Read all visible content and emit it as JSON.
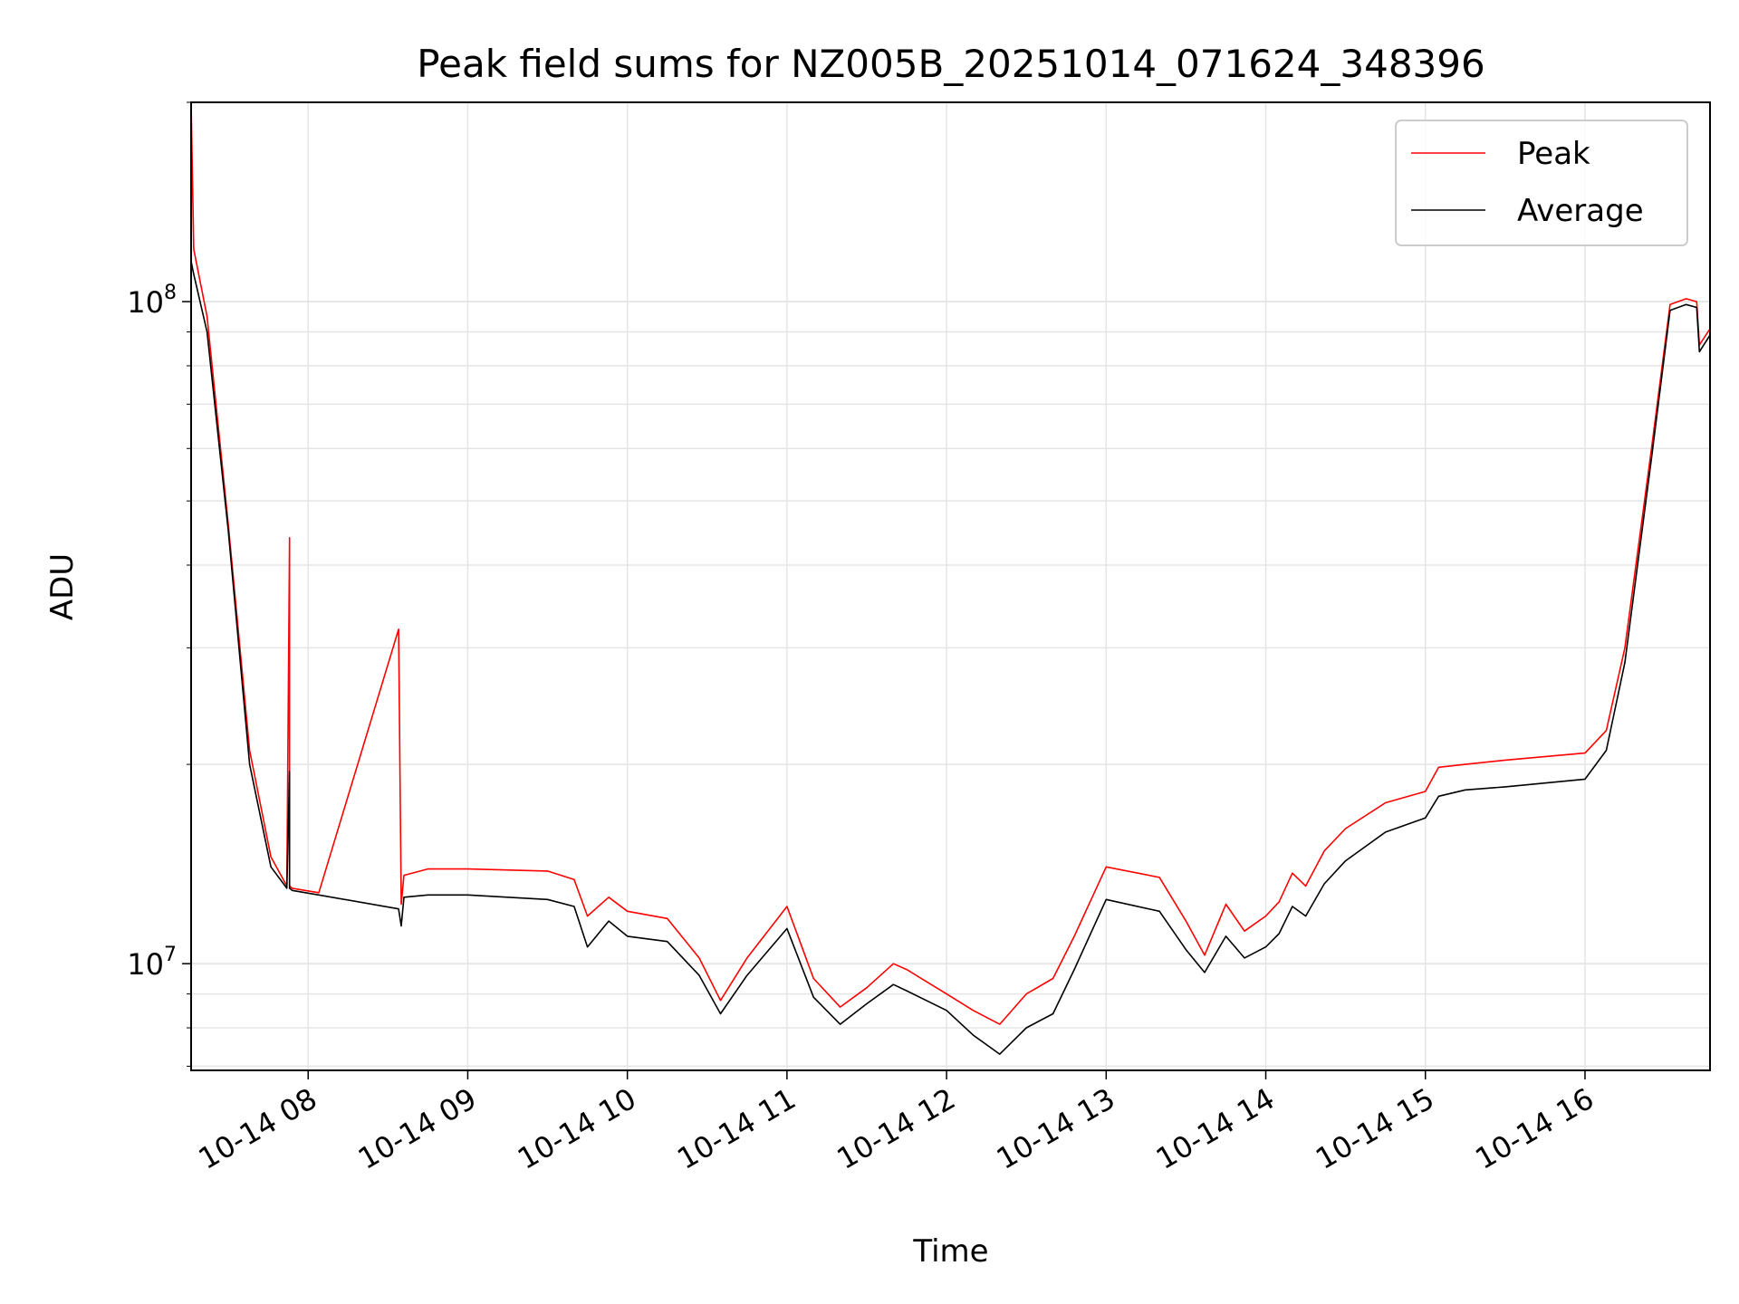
{
  "chart_data": {
    "type": "line",
    "title": "Peak field sums for NZ005B_20251014_071624_348396",
    "xlabel": "Time",
    "ylabel": "ADU",
    "yscale": "log",
    "ylim": [
      6900000,
      200000000
    ],
    "xlim": [
      "10-14 07:16",
      "10-14 16:47"
    ],
    "grid": true,
    "legend_position": "top-right",
    "x_tick_labels": [
      "10-14 08",
      "10-14 09",
      "10-14 10",
      "10-14 11",
      "10-14 12",
      "10-14 13",
      "10-14 14",
      "10-14 15",
      "10-14 16"
    ],
    "x_ticks": [
      "10-14 08:00",
      "10-14 09:00",
      "10-14 10:00",
      "10-14 11:00",
      "10-14 12:00",
      "10-14 13:00",
      "10-14 14:00",
      "10-14 15:00",
      "10-14 16:00"
    ],
    "y_major_ticks": [
      10000000,
      100000000
    ],
    "y_major_tick_labels": [
      {
        "base": "10",
        "exp": "7"
      },
      {
        "base": "10",
        "exp": "8"
      }
    ],
    "series": [
      {
        "name": "Peak",
        "color": "#ff0000",
        "x": [
          "10-14 07:16",
          "10-14 07:17",
          "10-14 07:22",
          "10-14 07:30",
          "10-14 07:38",
          "10-14 07:46",
          "10-14 07:52",
          "10-14 07:53",
          "10-14 07:53",
          "10-14 07:54",
          "10-14 08:04",
          "10-14 08:34",
          "10-14 08:35",
          "10-14 08:36",
          "10-14 08:45",
          "10-14 09:00",
          "10-14 09:30",
          "10-14 09:40",
          "10-14 09:45",
          "10-14 09:53",
          "10-14 10:00",
          "10-14 10:15",
          "10-14 10:27",
          "10-14 10:35",
          "10-14 10:45",
          "10-14 11:00",
          "10-14 11:10",
          "10-14 11:20",
          "10-14 11:30",
          "10-14 11:40",
          "10-14 11:45",
          "10-14 12:00",
          "10-14 12:10",
          "10-14 12:20",
          "10-14 12:30",
          "10-14 12:40",
          "10-14 12:48",
          "10-14 13:00",
          "10-14 13:20",
          "10-14 13:30",
          "10-14 13:37",
          "10-14 13:45",
          "10-14 13:52",
          "10-14 14:00",
          "10-14 14:05",
          "10-14 14:10",
          "10-14 14:15",
          "10-14 14:22",
          "10-14 14:30",
          "10-14 14:45",
          "10-14 15:00",
          "10-14 15:05",
          "10-14 15:15",
          "10-14 15:30",
          "10-14 16:00",
          "10-14 16:08",
          "10-14 16:15",
          "10-14 16:25",
          "10-14 16:32",
          "10-14 16:38",
          "10-14 16:42",
          "10-14 16:43",
          "10-14 16:47"
        ],
        "y": [
          200000000,
          120000000,
          95000000,
          46000000,
          21000000,
          14500000,
          13100000,
          44000000,
          13100000,
          13000000,
          12800000,
          32000000,
          12300000,
          13600000,
          13900000,
          13900000,
          13800000,
          13400000,
          11800000,
          12600000,
          12000000,
          11700000,
          10200000,
          8800000,
          10200000,
          12200000,
          9500000,
          8600000,
          9200000,
          10000000,
          9800000,
          9000000,
          8500000,
          8100000,
          9000000,
          9500000,
          11000000,
          14000000,
          13500000,
          11600000,
          10300000,
          12300000,
          11200000,
          11800000,
          12400000,
          13700000,
          13100000,
          14800000,
          16000000,
          17500000,
          18200000,
          19800000,
          20000000,
          20300000,
          20800000,
          22500000,
          30000000,
          60000000,
          99000000,
          101000000,
          100000000,
          86000000,
          91000000
        ]
      },
      {
        "name": "Average",
        "color": "#000000",
        "x": [
          "10-14 07:16",
          "10-14 07:17",
          "10-14 07:22",
          "10-14 07:30",
          "10-14 07:38",
          "10-14 07:46",
          "10-14 07:52",
          "10-14 07:53",
          "10-14 07:53",
          "10-14 07:54",
          "10-14 08:04",
          "10-14 08:34",
          "10-14 08:35",
          "10-14 08:36",
          "10-14 08:45",
          "10-14 09:00",
          "10-14 09:30",
          "10-14 09:40",
          "10-14 09:45",
          "10-14 09:53",
          "10-14 10:00",
          "10-14 10:15",
          "10-14 10:27",
          "10-14 10:35",
          "10-14 10:45",
          "10-14 11:00",
          "10-14 11:10",
          "10-14 11:20",
          "10-14 11:30",
          "10-14 11:40",
          "10-14 11:45",
          "10-14 12:00",
          "10-14 12:10",
          "10-14 12:20",
          "10-14 12:30",
          "10-14 12:40",
          "10-14 12:48",
          "10-14 13:00",
          "10-14 13:20",
          "10-14 13:30",
          "10-14 13:37",
          "10-14 13:45",
          "10-14 13:52",
          "10-14 14:00",
          "10-14 14:05",
          "10-14 14:10",
          "10-14 14:15",
          "10-14 14:22",
          "10-14 14:30",
          "10-14 14:45",
          "10-14 15:00",
          "10-14 15:05",
          "10-14 15:15",
          "10-14 15:30",
          "10-14 16:00",
          "10-14 16:08",
          "10-14 16:15",
          "10-14 16:25",
          "10-14 16:32",
          "10-14 16:38",
          "10-14 16:42",
          "10-14 16:43",
          "10-14 16:47"
        ],
        "y": [
          115000000,
          110000000,
          90000000,
          45000000,
          20000000,
          14000000,
          13000000,
          19500000,
          13000000,
          12900000,
          12700000,
          12100000,
          11400000,
          12600000,
          12700000,
          12700000,
          12500000,
          12200000,
          10600000,
          11600000,
          11000000,
          10800000,
          9600000,
          8400000,
          9600000,
          11300000,
          8900000,
          8100000,
          8700000,
          9300000,
          9100000,
          8500000,
          7800000,
          7300000,
          8000000,
          8400000,
          9800000,
          12500000,
          12000000,
          10500000,
          9700000,
          11000000,
          10200000,
          10600000,
          11100000,
          12200000,
          11800000,
          13200000,
          14300000,
          15800000,
          16600000,
          17900000,
          18300000,
          18500000,
          19000000,
          21000000,
          28500000,
          58000000,
          97000000,
          99000000,
          98000000,
          84000000,
          89000000
        ]
      }
    ]
  }
}
